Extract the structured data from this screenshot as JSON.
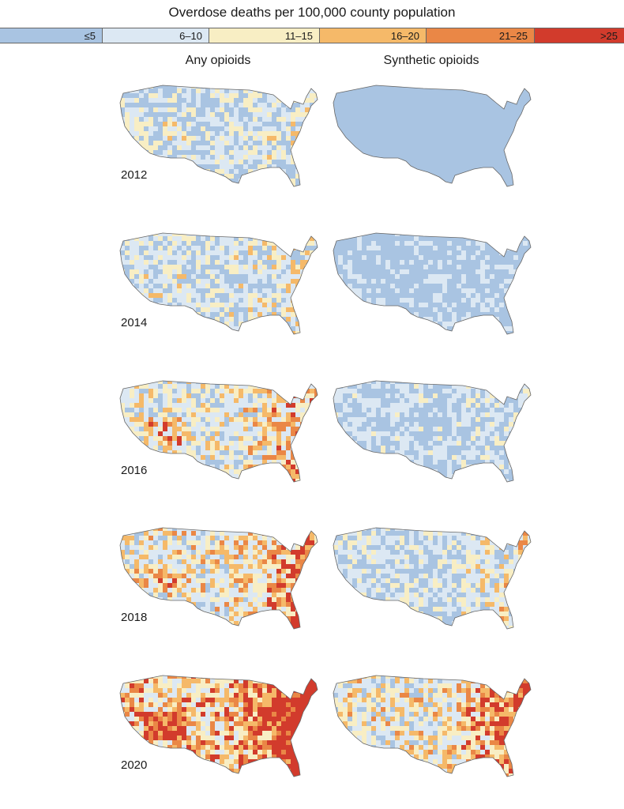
{
  "legend": {
    "title": "Overdose deaths per 100,000 county population",
    "bins": [
      {
        "label": "≤5",
        "color": "#a9c4e2"
      },
      {
        "label": "6–10",
        "color": "#dce8f3"
      },
      {
        "label": "11–15",
        "color": "#f8eec4"
      },
      {
        "label": "16–20",
        "color": "#f5b969"
      },
      {
        "label": "21–25",
        "color": "#ea8746"
      },
      {
        "label": ">25",
        "color": "#d23b2c"
      }
    ]
  },
  "columns": [
    "Any opioids",
    "Synthetic opioids"
  ],
  "years": [
    "2012",
    "2014",
    "2016",
    "2018",
    "2020"
  ],
  "intensity": {
    "any": [
      0.18,
      0.25,
      0.45,
      0.55,
      0.9
    ],
    "synthetic": [
      0.0,
      0.03,
      0.22,
      0.4,
      0.8
    ]
  }
}
